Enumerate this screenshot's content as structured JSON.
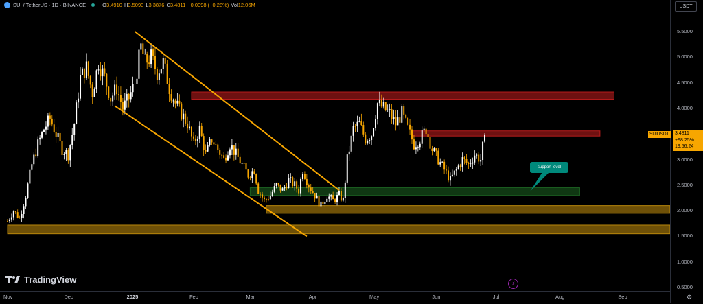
{
  "header": {
    "symbol": "SUI / TetherUS · 1D · BINANCE",
    "open_label": "O",
    "open": "3.4910",
    "high_label": "H",
    "high": "3.5093",
    "low_label": "L",
    "low": "3.3876",
    "close_label": "C",
    "close": "3.4811",
    "change": "−0.0098 (−0.28%)",
    "vol_label": "Vol",
    "vol": "12.06M"
  },
  "currency_button": "USDT",
  "last_price": {
    "symbol_tag": "SUIUSDT",
    "price": "3.4811",
    "change": "+98.25%",
    "countdown": "19:56:24",
    "value": 3.4811
  },
  "callout": {
    "text": "support level"
  },
  "branding": {
    "logo": "TradingView"
  },
  "icons": {
    "live": "live-dot-icon",
    "bolt": "lightning-icon",
    "settings": "gear-icon"
  },
  "colors": {
    "accent": "#f7a600",
    "up": "#ffffff",
    "down": "#f7a600",
    "resistance": "#b71c1c",
    "support_green": "#1b5e20",
    "support_orange": "#b8860b",
    "callout": "#00897b"
  },
  "chart_data": {
    "type": "candlestick",
    "price_ticks": [
      "5.5000",
      "5.0000",
      "4.5000",
      "4.0000",
      "3.5000",
      "3.0000",
      "2.5000",
      "2.0000",
      "1.5000",
      "1.0000",
      "0.5000"
    ],
    "price_tick_values": [
      5.5,
      5.0,
      4.5,
      4.0,
      3.5,
      3.0,
      2.5,
      2.0,
      1.5,
      1.0,
      0.5
    ],
    "time_ticks": [
      {
        "label": "Nov",
        "day": 0
      },
      {
        "label": "Dec",
        "day": 30
      },
      {
        "label": "2025",
        "day": 61,
        "bold": true
      },
      {
        "label": "Feb",
        "day": 92
      },
      {
        "label": "Mar",
        "day": 120
      },
      {
        "label": "Apr",
        "day": 151
      },
      {
        "label": "May",
        "day": 181
      },
      {
        "label": "Jun",
        "day": 212
      },
      {
        "label": "Jul",
        "day": 242
      },
      {
        "label": "Aug",
        "day": 273
      },
      {
        "label": "Sep",
        "day": 304
      }
    ],
    "price_anchors": [
      [
        0,
        1.8
      ],
      [
        3,
        2.0
      ],
      [
        6,
        1.85
      ],
      [
        9,
        2.3
      ],
      [
        12,
        2.9
      ],
      [
        15,
        3.3
      ],
      [
        18,
        3.6
      ],
      [
        21,
        3.8
      ],
      [
        24,
        3.5
      ],
      [
        27,
        3.2
      ],
      [
        30,
        3.1
      ],
      [
        33,
        3.7
      ],
      [
        36,
        4.6
      ],
      [
        39,
        4.8
      ],
      [
        42,
        4.3
      ],
      [
        45,
        4.9
      ],
      [
        48,
        4.6
      ],
      [
        51,
        4.2
      ],
      [
        54,
        4.4
      ],
      [
        57,
        4.0
      ],
      [
        60,
        4.2
      ],
      [
        63,
        4.5
      ],
      [
        66,
        5.2
      ],
      [
        68,
        4.9
      ],
      [
        71,
        5.0
      ],
      [
        74,
        4.7
      ],
      [
        77,
        4.9
      ],
      [
        80,
        4.4
      ],
      [
        83,
        4.1
      ],
      [
        86,
        3.9
      ],
      [
        89,
        3.7
      ],
      [
        92,
        3.3
      ],
      [
        95,
        3.6
      ],
      [
        98,
        3.1
      ],
      [
        101,
        3.4
      ],
      [
        104,
        3.2
      ],
      [
        107,
        3.0
      ],
      [
        110,
        3.3
      ],
      [
        113,
        3.1
      ],
      [
        116,
        2.9
      ],
      [
        119,
        2.7
      ],
      [
        122,
        2.8
      ],
      [
        124,
        2.4
      ],
      [
        127,
        2.2
      ],
      [
        130,
        2.3
      ],
      [
        133,
        2.5
      ],
      [
        136,
        2.4
      ],
      [
        139,
        2.6
      ],
      [
        142,
        2.5
      ],
      [
        144,
        2.4
      ],
      [
        146,
        2.8
      ],
      [
        149,
        2.5
      ],
      [
        152,
        2.3
      ],
      [
        155,
        2.1
      ],
      [
        158,
        2.3
      ],
      [
        161,
        2.2
      ],
      [
        164,
        2.3
      ],
      [
        166,
        2.2
      ],
      [
        168,
        3.0
      ],
      [
        171,
        3.6
      ],
      [
        174,
        3.7
      ],
      [
        177,
        3.4
      ],
      [
        180,
        3.5
      ],
      [
        183,
        4.1
      ],
      [
        186,
        4.0
      ],
      [
        189,
        3.9
      ],
      [
        192,
        3.7
      ],
      [
        195,
        3.9
      ],
      [
        198,
        3.6
      ],
      [
        201,
        3.3
      ],
      [
        204,
        3.4
      ],
      [
        207,
        3.6
      ],
      [
        210,
        3.2
      ],
      [
        213,
        3.0
      ],
      [
        216,
        2.8
      ],
      [
        219,
        2.6
      ],
      [
        222,
        2.8
      ],
      [
        225,
        3.0
      ],
      [
        228,
        2.9
      ],
      [
        231,
        3.1
      ],
      [
        234,
        3.0
      ],
      [
        236,
        3.49
      ]
    ],
    "zones": [
      {
        "name": "resistance-upper",
        "from": 4.18,
        "to": 4.32,
        "day_start": 91,
        "day_end": 300,
        "color": "#b71c1c"
      },
      {
        "name": "resistance-lower",
        "from": 3.46,
        "to": 3.56,
        "day_start": 200,
        "day_end": 293,
        "color": "#b71c1c"
      },
      {
        "name": "support-green",
        "from": 2.3,
        "to": 2.45,
        "day_start": 120,
        "day_end": 283,
        "color": "#1b5e20"
      },
      {
        "name": "support-orange-upper",
        "from": 1.95,
        "to": 2.1,
        "day_start": 128,
        "day_end": 330,
        "color": "#b8860b"
      },
      {
        "name": "support-orange-lower",
        "from": 1.55,
        "to": 1.72,
        "day_start": 0,
        "day_end": 330,
        "color": "#b8860b"
      }
    ],
    "channel_lines": [
      {
        "from": [
          63,
          5.5
        ],
        "to": [
          164,
          2.4
        ]
      },
      {
        "from": [
          53,
          4.05
        ],
        "to": [
          148,
          1.5
        ]
      }
    ]
  }
}
